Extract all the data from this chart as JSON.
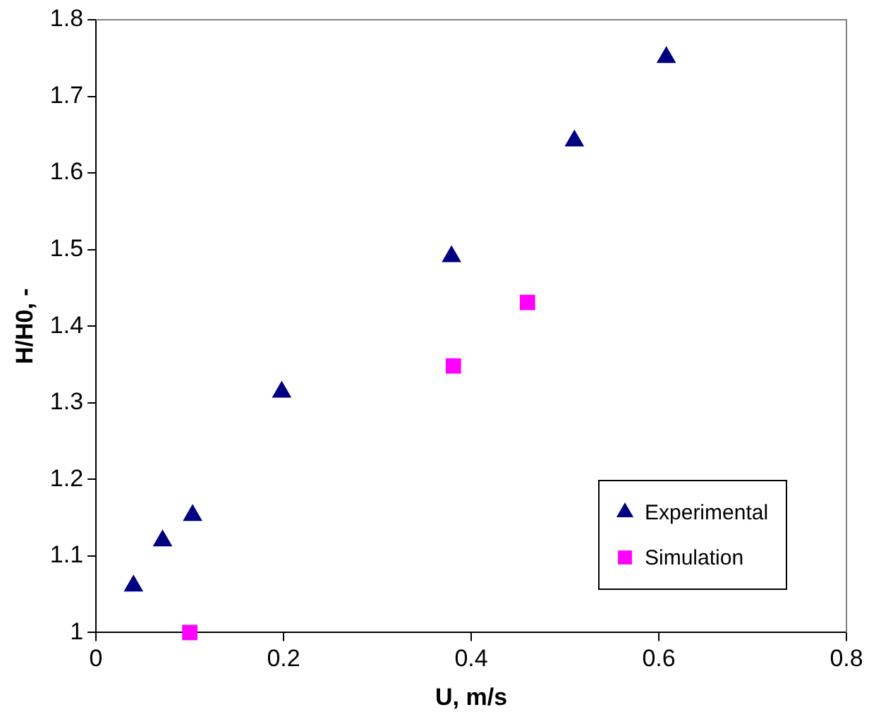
{
  "chart_data": {
    "type": "scatter",
    "xlabel": "U, m/s",
    "ylabel": "H/H0, -",
    "xlim": [
      0,
      0.8
    ],
    "xticks": [
      0,
      0.2,
      0.4,
      0.6,
      0.8
    ],
    "ylim": [
      1,
      1.8
    ],
    "yticks": [
      1,
      1.1,
      1.2,
      1.3,
      1.4,
      1.5,
      1.6,
      1.7,
      1.8
    ],
    "grid": false,
    "legend": "bottom right",
    "series": [
      {
        "name": "Experimental",
        "color": "#000080",
        "marker": "triangle",
        "x": [
          0.04,
          0.071,
          0.103,
          0.198,
          0.379,
          0.51,
          0.608
        ],
        "values": [
          1.061,
          1.12,
          1.153,
          1.314,
          1.491,
          1.642,
          1.751
        ]
      },
      {
        "name": "Simulation",
        "color": "#ff00ff",
        "marker": "square",
        "x": [
          0.1,
          0.381,
          0.46
        ],
        "values": [
          1.0,
          1.348,
          1.431
        ]
      }
    ]
  }
}
